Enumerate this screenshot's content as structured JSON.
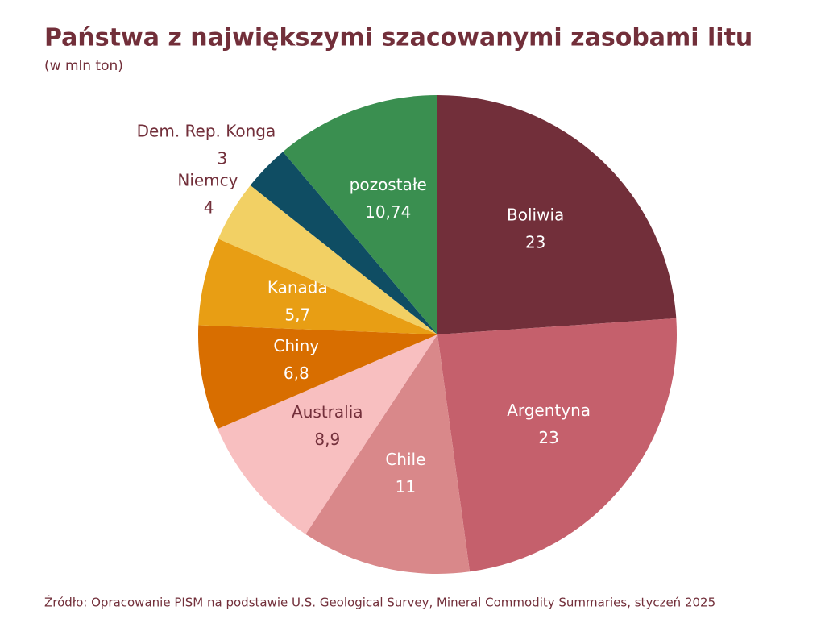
{
  "chart_data": {
    "type": "pie",
    "title": "Państwa z największymi szacowanymi zasobami litu",
    "subtitle": "(w mln ton)",
    "categories": [
      "Boliwia",
      "Argentyna",
      "Chile",
      "Australia",
      "Chiny",
      "Kanada",
      "Niemcy",
      "Dem. Rep. Konga",
      "pozostałe"
    ],
    "values": [
      23,
      23,
      11,
      8.9,
      6.8,
      5.7,
      4,
      3,
      10.74
    ],
    "value_labels": [
      "23",
      "23",
      "11",
      "8,9",
      "6,8",
      "5,7",
      "4",
      "3",
      "10,74"
    ],
    "colors": [
      "#722f3a",
      "#c5606c",
      "#d9888a",
      "#f8bfc0",
      "#d86e00",
      "#e89e14",
      "#f2d064",
      "#0f4d63",
      "#3a8f50"
    ],
    "source": "Źródło: Opracowanie PISM na podstawie U.S. Geological Survey, Mineral Commodity Summaries, styczeń 2025"
  }
}
